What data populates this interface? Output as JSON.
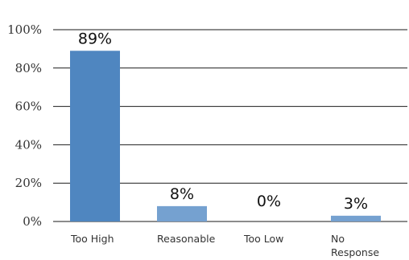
{
  "chart_data": {
    "type": "bar",
    "title": "",
    "xlabel": "",
    "ylabel": "",
    "categories": [
      "Too High",
      "Reasonable",
      "Too Low",
      "No Response"
    ],
    "category_lines": [
      [
        "Too High"
      ],
      [
        "Reasonable"
      ],
      [
        "Too Low"
      ],
      [
        "No",
        "Response"
      ]
    ],
    "values": [
      89,
      8,
      0,
      3
    ],
    "data_labels": [
      "89%",
      "8%",
      "0%",
      "3%"
    ],
    "ylim": [
      0,
      100
    ],
    "yticks": [
      0,
      20,
      40,
      60,
      80,
      100
    ],
    "ytick_labels": [
      "0%",
      "20%",
      "40%",
      "60%",
      "80%",
      "100%"
    ],
    "grid": true,
    "legend": "none",
    "colors": [
      "#4f86c0",
      "#75a1d0",
      "#75a1d0",
      "#75a1d0"
    ]
  }
}
